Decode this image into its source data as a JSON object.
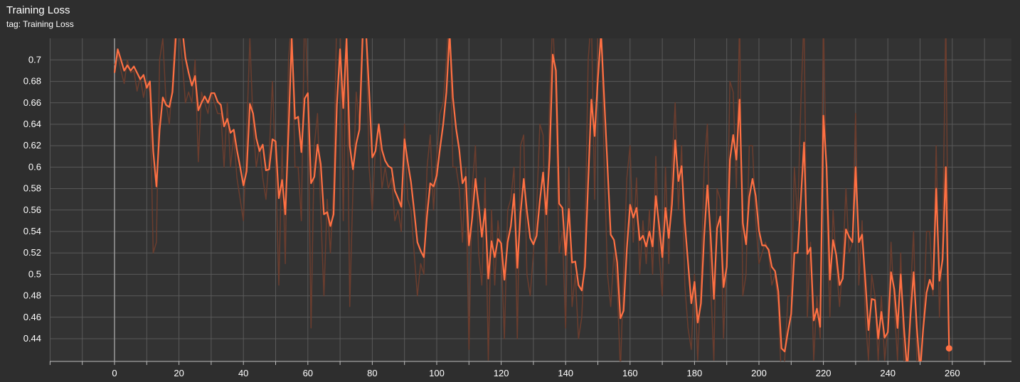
{
  "header": {
    "title": "Training Loss",
    "subtitle": "tag: Training Loss"
  },
  "colors": {
    "background": "#2e2e2e",
    "plot_background": "#333333",
    "grid": "#5a5a5a",
    "zero_axis": "#9a9a9a",
    "smoothed_series": "#ff7043",
    "raw_series": "#6b3d2e",
    "text": "#ffffff"
  },
  "chart_data": {
    "type": "line",
    "title": "Training Loss",
    "subtitle": "tag: Training Loss",
    "xlabel": "",
    "ylabel": "",
    "xlim": [
      -20,
      280
    ],
    "ylim": [
      0.43,
      0.72
    ],
    "x_ticks": [
      "0",
      "20",
      "40",
      "60",
      "80",
      "100",
      "120",
      "140",
      "160",
      "180",
      "200",
      "220",
      "240",
      "260"
    ],
    "y_ticks": [
      "0.44",
      "0.46",
      "0.48",
      "0.5",
      "0.52",
      "0.54",
      "0.56",
      "0.58",
      "0.6",
      "0.62",
      "0.64",
      "0.66",
      "0.68",
      "0.7"
    ],
    "grid": true,
    "last_point_marker": [
      259,
      0.431
    ],
    "series": [
      {
        "role": "smoothed",
        "x": [
          0,
          1,
          2,
          3,
          4,
          5,
          6,
          7,
          8,
          9,
          10,
          11,
          12,
          13,
          14,
          15,
          16,
          17,
          18,
          19,
          20,
          21,
          22,
          23,
          24,
          25,
          26,
          27,
          28,
          29,
          30,
          31,
          32,
          33,
          34,
          35,
          36,
          37,
          38,
          39,
          40,
          41,
          42,
          43,
          44,
          45,
          46,
          47,
          48,
          49,
          50,
          51,
          52,
          53,
          54,
          55,
          56,
          57,
          58,
          59,
          60,
          61,
          62,
          63,
          64,
          65,
          66,
          67,
          68,
          69,
          70,
          71,
          72,
          73,
          74,
          75,
          76,
          77,
          78,
          79,
          80,
          81,
          82,
          83,
          84,
          85,
          86,
          87,
          88,
          89,
          90,
          91,
          92,
          93,
          94,
          95,
          96,
          97,
          98,
          99,
          100,
          101,
          102,
          103,
          104,
          105,
          106,
          107,
          108,
          109,
          110,
          111,
          112,
          113,
          114,
          115,
          116,
          117,
          118,
          119,
          120,
          121,
          122,
          123,
          124,
          125,
          126,
          127,
          128,
          129,
          130,
          131,
          132,
          133,
          134,
          135,
          136,
          137,
          138,
          139,
          140,
          141,
          142,
          143,
          144,
          145,
          146,
          147,
          148,
          149,
          150,
          151,
          152,
          153,
          154,
          155,
          156,
          157,
          158,
          159,
          160,
          161,
          162,
          163,
          164,
          165,
          166,
          167,
          168,
          169,
          170,
          171,
          172,
          173,
          174,
          175,
          176,
          177,
          178,
          179,
          180,
          181,
          182,
          183,
          184,
          185,
          186,
          187,
          188,
          189,
          190,
          191,
          192,
          193,
          194,
          195,
          196,
          197,
          198,
          199,
          200,
          201,
          202,
          203,
          204,
          205,
          206,
          207,
          208,
          209,
          210,
          211,
          212,
          213,
          214,
          215,
          216,
          217,
          218,
          219,
          220,
          221,
          222,
          223,
          224,
          225,
          226,
          227,
          228,
          229,
          230,
          231,
          232,
          233,
          234,
          235,
          236,
          237,
          238,
          239,
          240,
          241,
          242,
          243,
          244,
          245,
          246,
          247,
          248,
          249,
          250,
          251,
          252,
          253,
          254,
          255,
          256,
          257,
          258,
          259
        ],
        "values": [
          0.688,
          0.71,
          0.7,
          0.69,
          0.695,
          0.69,
          0.694,
          0.688,
          0.682,
          0.686,
          0.674,
          0.68,
          0.615,
          0.582,
          0.635,
          0.665,
          0.658,
          0.656,
          0.67,
          0.72,
          0.74,
          0.73,
          0.702,
          0.688,
          0.676,
          0.685,
          0.653,
          0.66,
          0.666,
          0.66,
          0.669,
          0.669,
          0.661,
          0.658,
          0.638,
          0.645,
          0.632,
          0.635,
          0.616,
          0.6,
          0.583,
          0.596,
          0.659,
          0.65,
          0.627,
          0.615,
          0.621,
          0.597,
          0.598,
          0.626,
          0.624,
          0.571,
          0.588,
          0.556,
          0.633,
          0.72,
          0.645,
          0.647,
          0.614,
          0.664,
          0.669,
          0.585,
          0.591,
          0.621,
          0.603,
          0.556,
          0.558,
          0.545,
          0.556,
          0.658,
          0.71,
          0.655,
          0.72,
          0.62,
          0.598,
          0.622,
          0.635,
          0.72,
          0.73,
          0.672,
          0.609,
          0.615,
          0.64,
          0.616,
          0.606,
          0.601,
          0.599,
          0.578,
          0.571,
          0.563,
          0.626,
          0.605,
          0.586,
          0.559,
          0.53,
          0.522,
          0.516,
          0.555,
          0.585,
          0.582,
          0.592,
          0.617,
          0.64,
          0.67,
          0.725,
          0.665,
          0.636,
          0.616,
          0.585,
          0.591,
          0.527,
          0.552,
          0.589,
          0.565,
          0.535,
          0.561,
          0.496,
          0.531,
          0.516,
          0.533,
          0.529,
          0.495,
          0.53,
          0.545,
          0.575,
          0.506,
          0.557,
          0.589,
          0.559,
          0.534,
          0.528,
          0.536,
          0.569,
          0.595,
          0.556,
          0.608,
          0.705,
          0.69,
          0.566,
          0.562,
          0.518,
          0.561,
          0.511,
          0.512,
          0.49,
          0.485,
          0.507,
          0.586,
          0.663,
          0.629,
          0.682,
          0.725,
          0.662,
          0.6,
          0.537,
          0.532,
          0.511,
          0.459,
          0.466,
          0.524,
          0.565,
          0.553,
          0.562,
          0.532,
          0.536,
          0.526,
          0.54,
          0.526,
          0.573,
          0.546,
          0.516,
          0.562,
          0.534,
          0.565,
          0.625,
          0.587,
          0.601,
          0.548,
          0.511,
          0.473,
          0.493,
          0.455,
          0.473,
          0.536,
          0.583,
          0.536,
          0.477,
          0.543,
          0.554,
          0.488,
          0.507,
          0.607,
          0.63,
          0.607,
          0.663,
          0.548,
          0.528,
          0.572,
          0.589,
          0.573,
          0.541,
          0.527,
          0.527,
          0.523,
          0.507,
          0.503,
          0.484,
          0.431,
          0.428,
          0.447,
          0.463,
          0.52,
          0.52,
          0.57,
          0.623,
          0.519,
          0.525,
          0.457,
          0.468,
          0.451,
          0.648,
          0.6,
          0.495,
          0.532,
          0.518,
          0.49,
          0.496,
          0.542,
          0.535,
          0.53,
          0.6,
          0.53,
          0.537,
          0.495,
          0.448,
          0.477,
          0.476,
          0.44,
          0.465,
          0.441,
          0.446,
          0.502,
          0.486,
          0.45,
          0.5,
          0.45,
          0.41,
          0.46,
          0.502,
          0.45,
          0.41,
          0.45,
          0.483,
          0.495,
          0.486,
          0.58,
          0.494,
          0.514,
          0.6,
          0.431
        ]
      },
      {
        "role": "raw",
        "x": [
          0,
          1,
          2,
          3,
          4,
          5,
          6,
          7,
          8,
          9,
          10,
          11,
          12,
          13,
          14,
          15,
          16,
          17,
          18,
          19,
          20,
          21,
          22,
          23,
          24,
          25,
          26,
          27,
          28,
          29,
          30,
          31,
          32,
          33,
          34,
          35,
          36,
          37,
          38,
          39,
          40,
          41,
          42,
          43,
          44,
          45,
          46,
          47,
          48,
          49,
          50,
          51,
          52,
          53,
          54,
          55,
          56,
          57,
          58,
          59,
          60,
          61,
          62,
          63,
          64,
          65,
          66,
          67,
          68,
          69,
          70,
          71,
          72,
          73,
          74,
          75,
          76,
          77,
          78,
          79,
          80,
          81,
          82,
          83,
          84,
          85,
          86,
          87,
          88,
          89,
          90,
          91,
          92,
          93,
          94,
          95,
          96,
          97,
          98,
          99,
          100,
          101,
          102,
          103,
          104,
          105,
          106,
          107,
          108,
          109,
          110,
          111,
          112,
          113,
          114,
          115,
          116,
          117,
          118,
          119,
          120,
          121,
          122,
          123,
          124,
          125,
          126,
          127,
          128,
          129,
          130,
          131,
          132,
          133,
          134,
          135,
          136,
          137,
          138,
          139,
          140,
          141,
          142,
          143,
          144,
          145,
          146,
          147,
          148,
          149,
          150,
          151,
          152,
          153,
          154,
          155,
          156,
          157,
          158,
          159,
          160,
          161,
          162,
          163,
          164,
          165,
          166,
          167,
          168,
          169,
          170,
          171,
          172,
          173,
          174,
          175,
          176,
          177,
          178,
          179,
          180,
          181,
          182,
          183,
          184,
          185,
          186,
          187,
          188,
          189,
          190,
          191,
          192,
          193,
          194,
          195,
          196,
          197,
          198,
          199,
          200,
          201,
          202,
          203,
          204,
          205,
          206,
          207,
          208,
          209,
          210,
          211,
          212,
          213,
          214,
          215,
          216,
          217,
          218,
          219,
          220,
          221,
          222,
          223,
          224,
          225,
          226,
          227,
          228,
          229,
          230,
          231,
          232,
          233,
          234,
          235,
          236,
          237,
          238,
          239,
          240,
          241,
          242,
          243,
          244,
          245,
          246,
          247,
          248,
          249,
          250,
          251,
          252,
          253,
          254,
          255,
          256,
          257,
          258,
          259
        ],
        "values": [
          0.695,
          0.705,
          0.69,
          0.678,
          0.7,
          0.688,
          0.69,
          0.671,
          0.684,
          0.665,
          0.68,
          0.67,
          0.52,
          0.53,
          0.7,
          0.72,
          0.66,
          0.64,
          0.68,
          0.74,
          0.73,
          0.7,
          0.66,
          0.67,
          0.66,
          0.7,
          0.605,
          0.67,
          0.66,
          0.65,
          0.67,
          0.66,
          0.65,
          0.65,
          0.6,
          0.66,
          0.6,
          0.63,
          0.59,
          0.57,
          0.55,
          0.63,
          0.72,
          0.64,
          0.6,
          0.62,
          0.59,
          0.57,
          0.61,
          0.68,
          0.6,
          0.49,
          0.62,
          0.51,
          0.7,
          0.74,
          0.6,
          0.6,
          0.55,
          0.75,
          0.67,
          0.45,
          0.62,
          0.65,
          0.56,
          0.48,
          0.57,
          0.52,
          0.58,
          0.75,
          0.74,
          0.55,
          0.74,
          0.47,
          0.58,
          0.67,
          0.64,
          0.74,
          0.74,
          0.6,
          0.56,
          0.62,
          0.64,
          0.58,
          0.6,
          0.58,
          0.59,
          0.55,
          0.56,
          0.54,
          0.64,
          0.57,
          0.56,
          0.52,
          0.48,
          0.51,
          0.5,
          0.6,
          0.63,
          0.56,
          0.61,
          0.65,
          0.66,
          0.7,
          0.75,
          0.6,
          0.6,
          0.58,
          0.53,
          0.6,
          0.43,
          0.58,
          0.62,
          0.52,
          0.49,
          0.59,
          0.42,
          0.56,
          0.49,
          0.55,
          0.52,
          0.44,
          0.56,
          0.57,
          0.6,
          0.44,
          0.62,
          0.63,
          0.5,
          0.48,
          0.52,
          0.56,
          0.64,
          0.63,
          0.49,
          0.66,
          0.74,
          0.66,
          0.52,
          0.54,
          0.45,
          0.6,
          0.47,
          0.5,
          0.44,
          0.46,
          0.53,
          0.7,
          0.74,
          0.57,
          0.73,
          0.74,
          0.6,
          0.5,
          0.47,
          0.52,
          0.49,
          0.41,
          0.5,
          0.59,
          0.62,
          0.53,
          0.59,
          0.5,
          0.55,
          0.51,
          0.56,
          0.5,
          0.61,
          0.52,
          0.48,
          0.6,
          0.51,
          0.6,
          0.66,
          0.56,
          0.62,
          0.49,
          0.45,
          0.43,
          0.5,
          0.42,
          0.49,
          0.6,
          0.64,
          0.49,
          0.42,
          0.58,
          0.57,
          0.44,
          0.52,
          0.68,
          0.67,
          0.58,
          0.74,
          0.48,
          0.5,
          0.62,
          0.62,
          0.55,
          0.51,
          0.52,
          0.53,
          0.52,
          0.49,
          0.5,
          0.47,
          0.4,
          0.42,
          0.48,
          0.48,
          0.6,
          0.55,
          0.66,
          0.74,
          0.46,
          0.53,
          0.42,
          0.48,
          0.44,
          0.74,
          0.57,
          0.46,
          0.56,
          0.51,
          0.47,
          0.51,
          0.58,
          0.52,
          0.53,
          0.65,
          0.49,
          0.55,
          0.46,
          0.42,
          0.5,
          0.48,
          0.42,
          0.48,
          0.42,
          0.45,
          0.53,
          0.47,
          0.42,
          0.52,
          0.42,
          0.39,
          0.48,
          0.54,
          0.42,
          0.39,
          0.45,
          0.54,
          0.54,
          0.48,
          0.62,
          0.46,
          0.53,
          0.74,
          0.42
        ]
      }
    ]
  }
}
